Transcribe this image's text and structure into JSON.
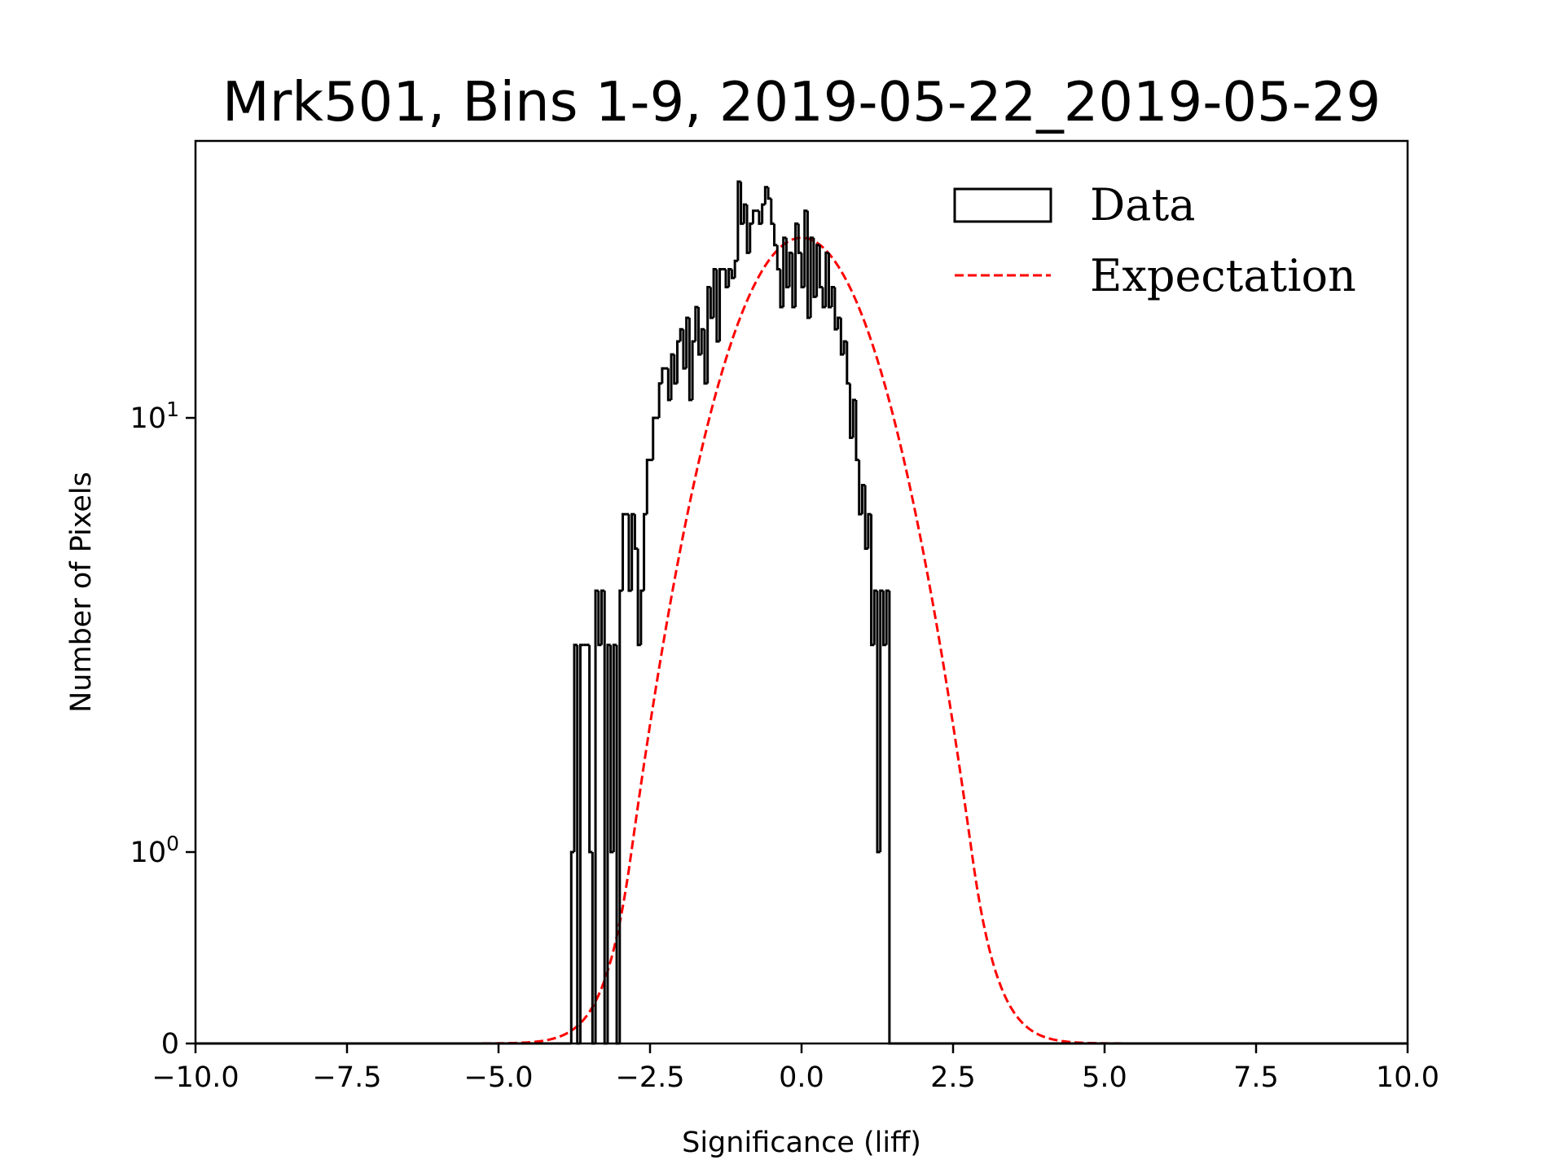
{
  "chart_data": {
    "type": "histogram",
    "title": "Mrk501, Bins 1-9, 2019-05-22_2019-05-29",
    "xlabel": "Significance (liff)",
    "ylabel": "Number of Pixels",
    "xlim": [
      -10,
      10
    ],
    "ylim": [
      0,
      43
    ],
    "yscale": "symlog",
    "y_linthresh": 1,
    "grid": false,
    "x_ticks": [
      -10,
      -7.5,
      -5,
      -2.5,
      0,
      2.5,
      5,
      7.5,
      10
    ],
    "x_tick_labels": [
      "−10.0",
      "−7.5",
      "−5.0",
      "−2.5",
      "0.0",
      "2.5",
      "5.0",
      "7.5",
      "10.0"
    ],
    "y_ticks": [
      {
        "value": 0,
        "base": "0",
        "exp": ""
      },
      {
        "value": 1,
        "base": "10",
        "exp": "0"
      },
      {
        "value": 10,
        "base": "10",
        "exp": "1"
      }
    ],
    "legend": {
      "placement": "top-right",
      "entries": [
        {
          "label": "Data",
          "style": "step-outline",
          "color": "#000000"
        },
        {
          "label": "Expectation",
          "style": "dashed-line",
          "color": "#ff0000"
        }
      ]
    },
    "series": [
      {
        "name": "Data",
        "kind": "histogram-step",
        "color": "#000000",
        "bin_start": -3.8,
        "bin_width": 0.05,
        "counts": [
          1,
          3,
          0,
          3,
          3,
          3,
          1,
          0,
          4,
          3,
          4,
          0,
          3,
          1,
          3,
          0,
          4,
          6,
          6,
          4,
          6,
          5,
          3,
          4,
          6,
          8,
          8,
          10,
          10,
          12,
          13,
          13,
          11,
          14,
          12,
          15,
          16,
          13,
          17,
          11,
          15,
          18,
          14,
          16,
          12,
          20,
          17,
          22,
          15,
          22,
          22,
          20,
          22,
          21,
          23,
          35,
          28,
          31,
          24,
          28,
          30,
          30,
          28,
          31,
          34,
          32,
          28,
          25,
          22,
          18,
          26,
          20,
          24,
          18,
          28,
          24,
          20,
          30,
          17,
          26,
          19,
          25,
          20,
          18,
          24,
          18,
          20,
          16,
          17,
          14,
          15,
          12,
          9,
          11,
          8,
          6,
          7,
          5,
          6,
          3,
          4,
          1,
          4,
          3,
          4
        ]
      },
      {
        "name": "Expectation",
        "kind": "gaussian-curve",
        "color": "#ff0000",
        "amplitude": 26,
        "mean": 0.0,
        "sigma": 1.1,
        "x_range": [
          -10,
          10
        ]
      }
    ]
  }
}
